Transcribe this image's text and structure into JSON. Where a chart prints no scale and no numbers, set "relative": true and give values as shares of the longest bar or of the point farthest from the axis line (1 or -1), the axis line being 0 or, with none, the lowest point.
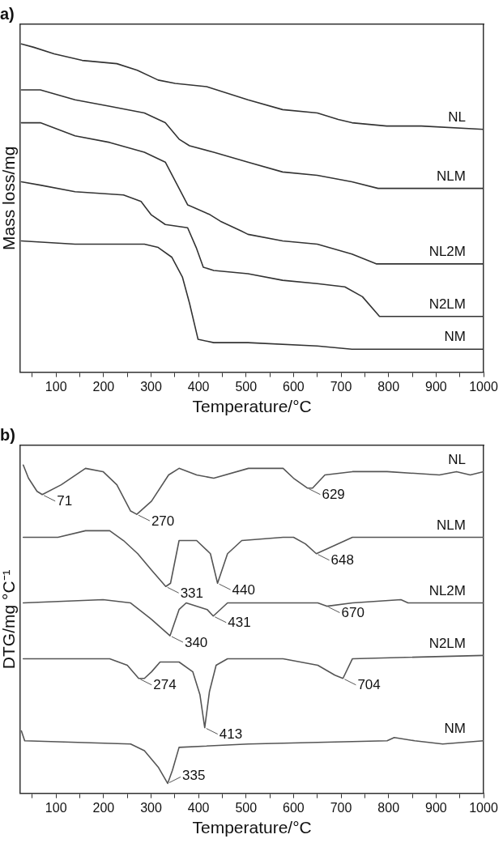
{
  "chart_data": [
    {
      "type": "line",
      "title": "a)",
      "xlabel": "Temperature/°C",
      "ylabel": "Mass loss/mg",
      "relative": true,
      "xlim": [
        25,
        1000
      ],
      "xticks": [
        {
          "value": 50,
          "label": null
        },
        100,
        {
          "value": 150,
          "label": null
        },
        200,
        {
          "value": 250,
          "label": null
        },
        300,
        {
          "value": 350,
          "label": null
        },
        400,
        {
          "value": 450,
          "label": null
        },
        500,
        {
          "value": 550,
          "label": null
        },
        600,
        {
          "value": 650,
          "label": null
        },
        700,
        {
          "value": 750,
          "label": null
        },
        800,
        {
          "value": 850,
          "label": null
        },
        900,
        {
          "value": 950,
          "label": null
        },
        1000
      ],
      "tick_labels": "x",
      "grid": false,
      "legend": false,
      "marker": "none",
      "line_style": "solid",
      "series": [
        {
          "name": "NL",
          "color": "#333333",
          "x": [
            27,
            53,
            96,
            155,
            228,
            271,
            315,
            351,
            417,
            504,
            577,
            650,
            694,
            723,
            796,
            869,
            1000
          ],
          "values": [
            1.0,
            0.99,
            0.97,
            0.95,
            0.94,
            0.92,
            0.89,
            0.88,
            0.87,
            0.83,
            0.8,
            0.79,
            0.77,
            0.76,
            0.75,
            0.75,
            0.74
          ]
        },
        {
          "name": "NLM",
          "color": "#333333",
          "x": [
            27,
            67,
            140,
            213,
            286,
            330,
            359,
            381,
            432,
            504,
            577,
            650,
            723,
            778,
            1000
          ],
          "values": [
            0.86,
            0.86,
            0.83,
            0.81,
            0.79,
            0.76,
            0.71,
            0.69,
            0.67,
            0.64,
            0.61,
            0.6,
            0.58,
            0.56,
            0.56
          ]
        },
        {
          "name": "NL2M",
          "color": "#333333",
          "x": [
            27,
            67,
            140,
            213,
            286,
            330,
            359,
            377,
            424,
            446,
            490,
            504,
            577,
            650,
            723,
            774,
            832,
            1000
          ],
          "values": [
            0.76,
            0.76,
            0.72,
            0.7,
            0.67,
            0.64,
            0.56,
            0.51,
            0.48,
            0.46,
            0.43,
            0.42,
            0.4,
            0.39,
            0.36,
            0.33,
            0.33,
            0.33
          ]
        },
        {
          "name": "N2LM",
          "color": "#333333",
          "x": [
            27,
            67,
            140,
            242,
            279,
            300,
            330,
            377,
            395,
            410,
            432,
            504,
            577,
            650,
            708,
            745,
            781,
            832,
            1000
          ],
          "values": [
            0.58,
            0.57,
            0.55,
            0.54,
            0.52,
            0.48,
            0.45,
            0.44,
            0.38,
            0.32,
            0.31,
            0.3,
            0.28,
            0.27,
            0.26,
            0.23,
            0.17,
            0.17,
            0.17
          ]
        },
        {
          "name": "NM",
          "color": "#333333",
          "x": [
            27,
            140,
            286,
            315,
            344,
            366,
            381,
            399,
            432,
            504,
            650,
            723,
            1000
          ],
          "values": [
            0.4,
            0.39,
            0.39,
            0.38,
            0.35,
            0.29,
            0.21,
            0.1,
            0.09,
            0.09,
            0.08,
            0.07,
            0.07
          ]
        }
      ]
    },
    {
      "type": "line",
      "title": "b)",
      "xlabel": "Temperature/°C",
      "ylabel": "DTG/mg °C⁻¹",
      "relative": true,
      "xlim": [
        25,
        1000
      ],
      "xticks": [
        {
          "value": 50,
          "label": null
        },
        100,
        {
          "value": 150,
          "label": null
        },
        200,
        {
          "value": 250,
          "label": null
        },
        300,
        {
          "value": 350,
          "label": null
        },
        400,
        {
          "value": 450,
          "label": null
        },
        500,
        {
          "value": 550,
          "label": null
        },
        600,
        {
          "value": 650,
          "label": null
        },
        700,
        {
          "value": 750,
          "label": null
        },
        800,
        {
          "value": 850,
          "label": null
        },
        900,
        {
          "value": 950,
          "label": null
        },
        1000
      ],
      "tick_labels": "x",
      "grid": false,
      "legend": false,
      "marker": "none",
      "line_style": "solid",
      "series": [
        {
          "name": "NL",
          "color": "#555555",
          "x": [
            31,
            42,
            60,
            71,
            111,
            162,
            199,
            228,
            257,
            270,
            301,
            337,
            359,
            396,
            432,
            505,
            578,
            600,
            629,
            640,
            666,
            724,
            797,
            907,
            943,
            972,
            1000
          ],
          "values": [
            1.0,
            0.96,
            0.92,
            0.91,
            0.94,
            0.99,
            0.98,
            0.94,
            0.86,
            0.85,
            0.89,
            0.97,
            0.99,
            0.97,
            0.96,
            0.99,
            0.99,
            0.96,
            0.93,
            0.93,
            0.97,
            0.98,
            0.98,
            0.97,
            0.98,
            0.97,
            0.98
          ]
        },
        {
          "name": "NLM",
          "color": "#555555",
          "x": [
            31,
            104,
            162,
            213,
            242,
            272,
            301,
            331,
            341,
            359,
            396,
            425,
            440,
            461,
            491,
            578,
            600,
            625,
            648,
            724,
            1000
          ],
          "values": [
            0.78,
            0.78,
            0.8,
            0.8,
            0.77,
            0.73,
            0.68,
            0.63,
            0.64,
            0.77,
            0.77,
            0.73,
            0.64,
            0.73,
            0.77,
            0.78,
            0.78,
            0.76,
            0.73,
            0.78,
            0.78
          ]
        },
        {
          "name": "NL2M",
          "color": "#555555",
          "x": [
            31,
            199,
            257,
            301,
            340,
            359,
            374,
            418,
            431,
            461,
            651,
            670,
            724,
            826,
            841,
            1000
          ],
          "values": [
            0.58,
            0.59,
            0.58,
            0.53,
            0.48,
            0.56,
            0.58,
            0.56,
            0.54,
            0.58,
            0.58,
            0.57,
            0.58,
            0.59,
            0.58,
            0.58
          ]
        },
        {
          "name": "N2LM",
          "color": "#555555",
          "x": [
            31,
            213,
            250,
            274,
            286,
            301,
            319,
            359,
            388,
            403,
            413,
            423,
            437,
            461,
            578,
            651,
            687,
            704,
            724,
            1000
          ],
          "values": [
            0.41,
            0.41,
            0.39,
            0.35,
            0.35,
            0.37,
            0.4,
            0.4,
            0.37,
            0.3,
            0.2,
            0.31,
            0.39,
            0.41,
            0.41,
            0.39,
            0.36,
            0.35,
            0.41,
            0.42
          ]
        },
        {
          "name": "NM",
          "color": "#555555",
          "x": [
            27,
            34,
            257,
            286,
            315,
            335,
            345,
            359,
            505,
            797,
            812,
            855,
            914,
            1000
          ],
          "values": [
            0.19,
            0.16,
            0.15,
            0.13,
            0.08,
            0.03,
            0.07,
            0.14,
            0.15,
            0.16,
            0.17,
            0.16,
            0.15,
            0.16
          ]
        }
      ],
      "annotations": [
        {
          "text": "71",
          "x": 71,
          "y": 0.91
        },
        {
          "text": "270",
          "x": 270,
          "y": 0.85
        },
        {
          "text": "629",
          "x": 629,
          "y": 0.93
        },
        {
          "text": "331",
          "x": 331,
          "y": 0.63
        },
        {
          "text": "440",
          "x": 440,
          "y": 0.64
        },
        {
          "text": "648",
          "x": 648,
          "y": 0.73
        },
        {
          "text": "340",
          "x": 340,
          "y": 0.48
        },
        {
          "text": "431",
          "x": 431,
          "y": 0.54
        },
        {
          "text": "670",
          "x": 670,
          "y": 0.57
        },
        {
          "text": "274",
          "x": 274,
          "y": 0.35
        },
        {
          "text": "413",
          "x": 413,
          "y": 0.2
        },
        {
          "text": "704",
          "x": 704,
          "y": 0.35
        },
        {
          "text": "335",
          "x": 335,
          "y": 0.03
        }
      ]
    }
  ]
}
